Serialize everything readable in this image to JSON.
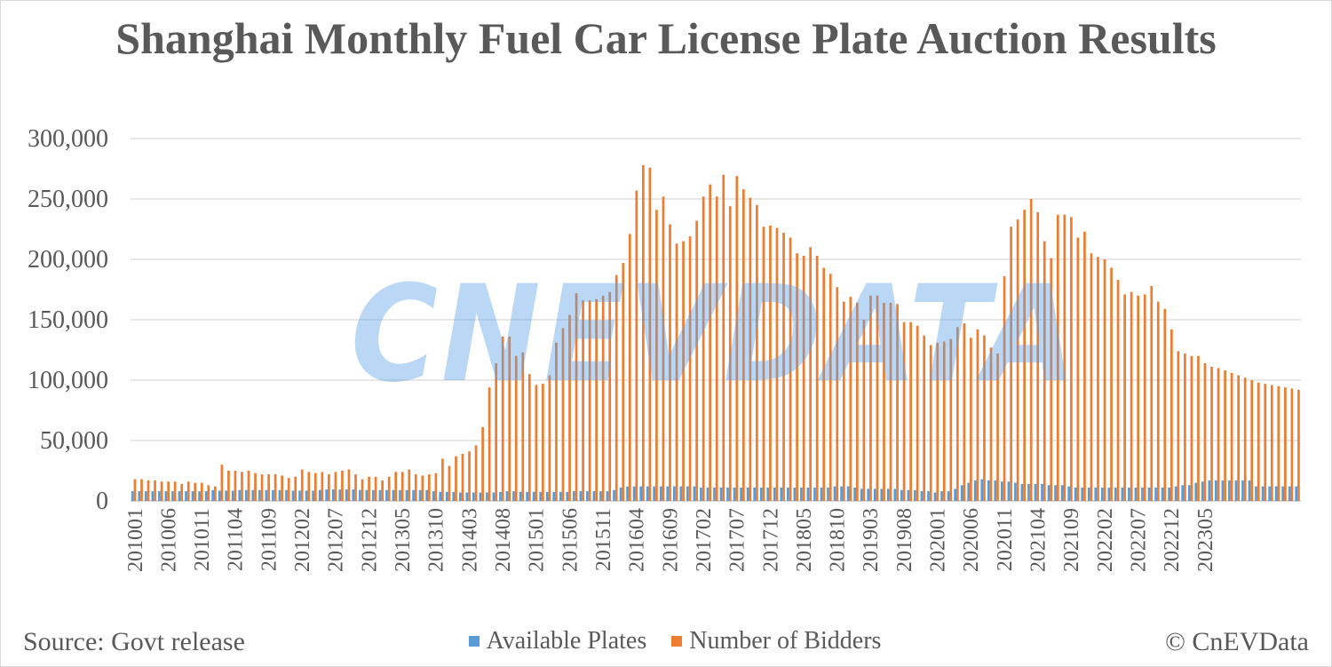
{
  "chart_data": {
    "type": "bar",
    "title": "Shanghai Monthly Fuel Car License Plate Auction Results",
    "xlabel": "",
    "ylabel": "",
    "ylim": [
      0,
      300000
    ],
    "yticks": [
      "300,000",
      "250,000",
      "200,000",
      "150,000",
      "100,000",
      "50,000",
      "0"
    ],
    "ytick_values": [
      300000,
      250000,
      200000,
      150000,
      100000,
      50000,
      0
    ],
    "xtick_labels": [
      "201001",
      "201006",
      "201011",
      "201104",
      "201109",
      "201202",
      "201207",
      "201212",
      "201305",
      "201310",
      "201403",
      "201408",
      "201501",
      "201506",
      "201511",
      "201604",
      "201609",
      "201702",
      "201707",
      "201712",
      "201805",
      "201810",
      "201903",
      "201908",
      "202001",
      "202006",
      "202011",
      "202104",
      "202109",
      "202202",
      "202207",
      "202212",
      "202305"
    ],
    "legend_position": "bottom",
    "grid": true,
    "start_month": "201001",
    "series": [
      {
        "name": "Available Plates",
        "color": "#5b9bd5",
        "values": [
          8000,
          8000,
          8000,
          8000,
          8000,
          8000,
          8000,
          8000,
          8000,
          8000,
          8000,
          8000,
          9000,
          8500,
          8500,
          8500,
          9000,
          9000,
          9000,
          9000,
          9000,
          9000,
          9000,
          9000,
          8500,
          8500,
          8500,
          8500,
          9000,
          9500,
          9500,
          9500,
          9500,
          9500,
          9000,
          9000,
          9000,
          9000,
          9000,
          9000,
          9000,
          9000,
          9000,
          9000,
          9000,
          8000,
          7500,
          7500,
          7500,
          7000,
          7000,
          7000,
          7000,
          7000,
          7000,
          7500,
          8000,
          8000,
          7500,
          7500,
          7500,
          7500,
          7500,
          7500,
          7500,
          7500,
          8000,
          8000,
          8000,
          8000,
          8000,
          8000,
          9000,
          11000,
          12000,
          12000,
          12000,
          12000,
          12000,
          12000,
          12000,
          12000,
          12000,
          12000,
          12000,
          11000,
          11000,
          11000,
          11000,
          11000,
          11000,
          11000,
          11000,
          11000,
          11000,
          11000,
          11000,
          11000,
          11000,
          11000,
          11000,
          11000,
          11000,
          11000,
          11000,
          12000,
          12000,
          12000,
          11000,
          10000,
          10000,
          10000,
          10000,
          10000,
          10000,
          9000,
          9000,
          9000,
          8000,
          8000,
          7000,
          8000,
          8000,
          10000,
          13000,
          15000,
          17000,
          18000,
          17000,
          17000,
          16000,
          16000,
          15000,
          14000,
          14000,
          14000,
          14000,
          13000,
          13000,
          13000,
          12000,
          11000,
          11000,
          11000,
          11000,
          11000,
          11000,
          11000,
          11000,
          11000,
          11000,
          11000,
          11000,
          11000,
          11000,
          11000,
          12000,
          13000,
          13000,
          15000,
          16000,
          17000,
          17000,
          17000,
          17000,
          17000,
          17000,
          17000,
          12000,
          12000,
          12000,
          12000,
          12000,
          12000,
          12000
        ]
      },
      {
        "name": "Number of Bidders",
        "color": "#ed7d31",
        "values": [
          18000,
          18000,
          17000,
          17000,
          16000,
          16000,
          16000,
          14000,
          16000,
          15000,
          15000,
          13000,
          12000,
          30000,
          25000,
          25000,
          24000,
          25000,
          23000,
          22000,
          22000,
          22000,
          21000,
          19000,
          20000,
          26000,
          24000,
          23000,
          24000,
          22000,
          24000,
          25000,
          26000,
          22000,
          18000,
          20000,
          20000,
          17000,
          20000,
          24000,
          24000,
          26000,
          22000,
          21000,
          22000,
          23000,
          35000,
          29000,
          37000,
          39000,
          41000,
          46000,
          61000,
          94000,
          114000,
          136000,
          136000,
          120000,
          123000,
          105000,
          96000,
          97000,
          104000,
          131000,
          143000,
          154000,
          172000,
          166000,
          166000,
          167000,
          170000,
          173000,
          187000,
          197000,
          221000,
          257000,
          278000,
          276000,
          241000,
          252000,
          229000,
          213000,
          215000,
          219000,
          232000,
          252000,
          262000,
          252000,
          270000,
          244000,
          269000,
          258000,
          251000,
          245000,
          227000,
          228000,
          226000,
          222000,
          218000,
          205000,
          203000,
          210000,
          203000,
          193000,
          188000,
          177000,
          165000,
          169000,
          164000,
          150000,
          170000,
          170000,
          164000,
          164000,
          163000,
          148000,
          148000,
          145000,
          137000,
          129000,
          131000,
          132000,
          134000,
          144000,
          147000,
          135000,
          142000,
          137000,
          127000,
          122000,
          186000,
          227000,
          233000,
          241000,
          250000,
          239000,
          215000,
          201000,
          237000,
          237000,
          235000,
          218000,
          223000,
          205000,
          202000,
          200000,
          193000,
          183000,
          171000,
          173000,
          170000,
          171000,
          178000,
          165000,
          159000,
          142000,
          124000,
          122000,
          120000,
          120000,
          114000,
          111000,
          110000,
          108000,
          106000,
          104000,
          102000,
          100000,
          98000,
          97000,
          96000,
          95000,
          94000,
          93000,
          92000
        ]
      }
    ]
  },
  "footer": {
    "source": "Source: Govt release",
    "credit": "© CnEVData"
  },
  "watermark": "CNEVDATA"
}
